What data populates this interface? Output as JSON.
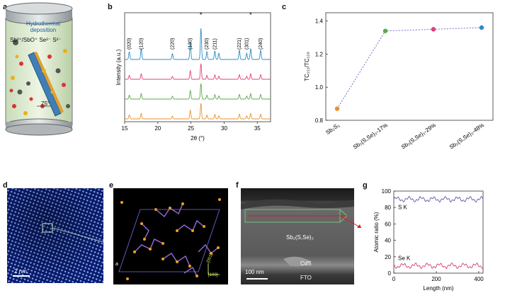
{
  "panels": {
    "a": {
      "letter": "a",
      "label_line1": "Hydrothermal",
      "label_line2": "deposition",
      "ions": "Sb³⁺/SbO⁺ Se²⁻ S²⁻",
      "angle": "75°"
    },
    "b": {
      "letter": "b"
    },
    "c": {
      "letter": "c"
    },
    "d": {
      "letter": "d",
      "scalebar": "2 nm"
    },
    "e": {
      "letter": "e",
      "dir1": "[001]",
      "dir2": "[100]",
      "origin_label": "a"
    },
    "f": {
      "letter": "f",
      "layer_main": "Sb₂(S,Se)₃",
      "layer_cds": "CdS",
      "layer_fto": "FTO",
      "scalebar": "100 nm"
    },
    "g": {
      "letter": "g"
    }
  },
  "chart_data": [
    {
      "id": "b",
      "type": "line",
      "xlabel": "2θ (°)",
      "ylabel": "Intensity (a.u.)",
      "xlim": [
        15,
        37
      ],
      "xticks": [
        15,
        20,
        25,
        30,
        35
      ],
      "peak_labels": [
        {
          "x": 15.7,
          "text": "(020)"
        },
        {
          "x": 17.5,
          "text": "(120)"
        },
        {
          "x": 22.2,
          "text": "(220)"
        },
        {
          "x": 24.9,
          "text": "(130)"
        },
        {
          "x": 27.4,
          "text": "(230)"
        },
        {
          "x": 28.6,
          "text": "(211)"
        },
        {
          "x": 32.3,
          "text": "(221)"
        },
        {
          "x": 33.4,
          "text": "(301)"
        },
        {
          "x": 35.5,
          "text": "(240)"
        }
      ],
      "markers": [
        {
          "x": 26.5,
          "text": "*"
        },
        {
          "x": 34.0,
          "text": "*"
        }
      ],
      "peaks": [
        {
          "x": 15.7,
          "h": 0.25
        },
        {
          "x": 17.5,
          "h": 0.35
        },
        {
          "x": 22.2,
          "h": 0.18
        },
        {
          "x": 24.9,
          "h": 0.55
        },
        {
          "x": 26.5,
          "h": 1.0
        },
        {
          "x": 27.4,
          "h": 0.25
        },
        {
          "x": 28.6,
          "h": 0.28
        },
        {
          "x": 29.2,
          "h": 0.2
        },
        {
          "x": 32.3,
          "h": 0.3
        },
        {
          "x": 33.4,
          "h": 0.2
        },
        {
          "x": 34.0,
          "h": 0.35
        },
        {
          "x": 35.5,
          "h": 0.3
        }
      ],
      "series": [
        {
          "color": "#e8912f",
          "offset": 0
        },
        {
          "color": "#5aaa4a",
          "offset": 1
        },
        {
          "color": "#e0407a",
          "offset": 2
        },
        {
          "color": "#2a8cc4",
          "offset": 3
        }
      ]
    },
    {
      "id": "c",
      "type": "scatter",
      "ylabel": "TC₂₂₁/TC₁₂₀",
      "categories": [
        "Sb₂S₃",
        "Sb₂(S,Se)₃-17%",
        "Sb₂(S,Se)₃-29%",
        "Sb₂(S,Se)₃-48%"
      ],
      "values": [
        0.87,
        1.34,
        1.35,
        1.36
      ],
      "colors": [
        "#e8912f",
        "#5aaa4a",
        "#e0407a",
        "#2a8cc4"
      ],
      "ylim": [
        0.8,
        1.45
      ],
      "yticks": [
        0.8,
        1.0,
        1.2,
        1.4
      ]
    },
    {
      "id": "g",
      "type": "line",
      "xlabel": "Length (nm)",
      "ylabel": "Atomic ratio (%)",
      "xlim": [
        0,
        420
      ],
      "ylim": [
        0,
        100
      ],
      "xticks": [
        0,
        200,
        400
      ],
      "yticks": [
        0,
        20,
        40,
        60,
        80,
        100
      ],
      "series": [
        {
          "name": "S K",
          "color": "#5a5aaa",
          "mean": 90
        },
        {
          "name": "Se K",
          "color": "#d0406a",
          "mean": 9
        }
      ]
    }
  ]
}
